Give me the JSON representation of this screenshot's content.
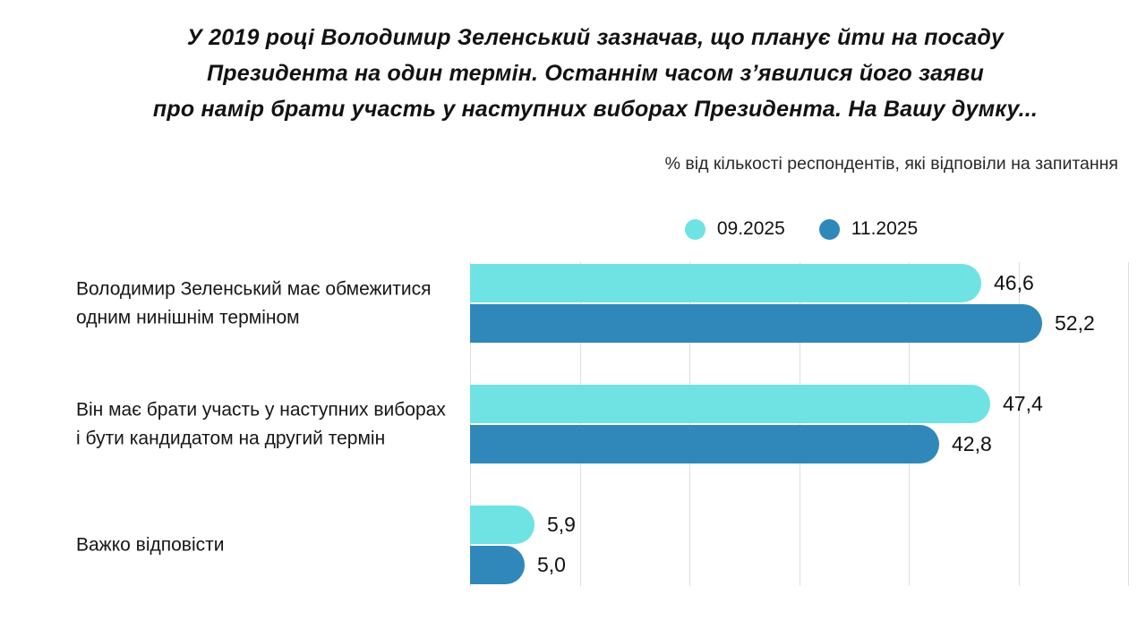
{
  "title_lines": [
    "У 2019 році Володимир Зеленський зазначав, що планує йти на посаду",
    "Президента на один термін. Останнім часом з’явилися його заяви",
    "про намір брати участь у наступних виборах Президента. На Вашу думку..."
  ],
  "subtitle": "% від кількості респондентів, які відповіли на запитання",
  "legend": [
    {
      "label": "09.2025",
      "color": "#6FE3E3"
    },
    {
      "label": "11.2025",
      "color": "#2F88B9"
    }
  ],
  "chart_data": {
    "type": "bar",
    "orientation": "horizontal",
    "unit": "%",
    "title": "У 2019 році Володимир Зеленський зазначав, що планує йти на посаду Президента на один термін. Останнім часом з’явилися його заяви про намір брати участь у наступних виборах Президента. На Вашу думку...",
    "subtitle": "% від кількості респондентів, які відповіли на запитання",
    "categories": [
      "Володимир Зеленський має обмежитися одним нинішнім терміном",
      "Він має брати участь у наступних виборах і бути кандидатом на другий термін",
      "Важко відповісти"
    ],
    "category_lines": [
      [
        "Володимир Зеленський має обмежитися",
        "одним нинішнім терміном"
      ],
      [
        "Він має брати участь у наступних виборах",
        "і бути кандидатом на другий термін"
      ],
      [
        "Важко відповісти"
      ]
    ],
    "series": [
      {
        "name": "09.2025",
        "color": "#6FE3E3",
        "values": [
          46.6,
          47.4,
          5.9
        ],
        "value_labels": [
          "46,6",
          "47,4",
          "5,9"
        ]
      },
      {
        "name": "11.2025",
        "color": "#2F88B9",
        "values": [
          52.2,
          42.8,
          5.0
        ],
        "value_labels": [
          "52,2",
          "42,8",
          "5,0"
        ]
      }
    ],
    "xlim": [
      0,
      60
    ],
    "gridline_step": 10,
    "grid": "vertical-only",
    "axis_tick_labels_visible": false,
    "value_labels_visible": true,
    "legend_position": "top-center",
    "gridline_color": "#dedede"
  }
}
